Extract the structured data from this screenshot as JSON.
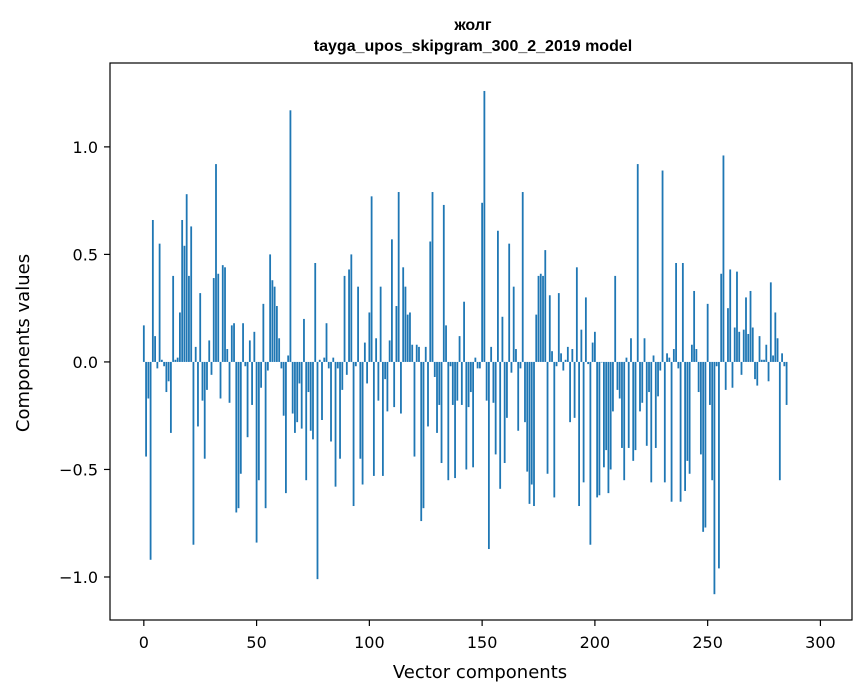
{
  "chart_data": {
    "type": "bar",
    "title_line1": "жолг",
    "title_line2": "tayga_upos_skipgram_300_2_2019 model",
    "xlabel": "Vector components",
    "ylabel": "Components values",
    "xlim": [
      -15,
      314
    ],
    "ylim": [
      -1.2,
      1.39
    ],
    "xticks": [
      0,
      50,
      100,
      150,
      200,
      250,
      300
    ],
    "xtick_labels": [
      "0",
      "50",
      "100",
      "150",
      "200",
      "250",
      "300"
    ],
    "yticks": [
      -1.0,
      -0.5,
      0.0,
      0.5,
      1.0
    ],
    "ytick_labels": [
      "−1.0",
      "−0.5",
      "0.0",
      "0.5",
      "1.0"
    ],
    "bar_color": "#1f77b4",
    "x_start": 0,
    "values": [
      0.17,
      -0.44,
      -0.17,
      -0.92,
      0.66,
      0.12,
      -0.03,
      0.55,
      0.01,
      -0.02,
      -0.14,
      -0.09,
      -0.33,
      0.4,
      0.01,
      0.02,
      0.23,
      0.66,
      0.54,
      0.78,
      0.4,
      0.63,
      -0.85,
      0.07,
      -0.3,
      0.32,
      -0.18,
      -0.45,
      -0.13,
      0.1,
      -0.06,
      0.39,
      0.92,
      0.41,
      -0.17,
      0.45,
      0.44,
      0.06,
      -0.19,
      0.17,
      0.18,
      -0.7,
      -0.68,
      -0.52,
      0.18,
      -0.02,
      -0.35,
      0.1,
      -0.2,
      0.14,
      -0.84,
      -0.55,
      -0.12,
      0.27,
      -0.68,
      -0.04,
      0.5,
      0.38,
      0.35,
      0.26,
      0.11,
      -0.03,
      -0.25,
      -0.61,
      0.03,
      1.17,
      -0.24,
      -0.33,
      -0.28,
      -0.1,
      -0.31,
      0.2,
      -0.55,
      -0.14,
      -0.32,
      -0.36,
      0.46,
      -1.01,
      0.01,
      -0.27,
      0.02,
      0.18,
      -0.03,
      -0.37,
      0.02,
      -0.58,
      -0.03,
      -0.45,
      -0.13,
      0.4,
      -0.06,
      0.43,
      0.5,
      -0.67,
      -0.02,
      0.35,
      -0.45,
      -0.57,
      0.09,
      -0.1,
      0.23,
      0.77,
      -0.53,
      0.11,
      -0.18,
      0.35,
      -0.53,
      -0.08,
      -0.23,
      0.1,
      0.57,
      -0.21,
      0.26,
      0.79,
      -0.24,
      0.44,
      0.35,
      0.22,
      0.23,
      0.08,
      -0.44,
      0.08,
      0.07,
      -0.74,
      -0.68,
      0.07,
      -0.3,
      0.56,
      0.79,
      -0.07,
      -0.33,
      -0.2,
      -0.47,
      0.73,
      0.17,
      -0.55,
      -0.02,
      -0.2,
      -0.54,
      -0.18,
      0.12,
      -0.2,
      0.28,
      -0.5,
      -0.21,
      -0.14,
      -0.49,
      0.02,
      -0.03,
      -0.03,
      0.74,
      1.26,
      -0.18,
      -0.87,
      0.07,
      -0.19,
      -0.43,
      0.61,
      -0.59,
      0.21,
      -0.47,
      -0.26,
      0.55,
      -0.05,
      0.35,
      0.06,
      -0.32,
      -0.03,
      0.79,
      -0.28,
      -0.51,
      -0.66,
      -0.57,
      -0.67,
      0.22,
      0.4,
      0.41,
      0.4,
      0.52,
      -0.52,
      0.31,
      0.05,
      -0.63,
      -0.02,
      0.32,
      0.04,
      -0.04,
      0.01,
      0.07,
      -0.28,
      0.06,
      -0.26,
      0.44,
      -0.67,
      0.15,
      -0.56,
      0.3,
      -0.01,
      -0.85,
      0.09,
      0.14,
      -0.63,
      -0.62,
      0.0,
      -0.49,
      -0.41,
      -0.61,
      -0.5,
      -0.23,
      0.4,
      -0.13,
      -0.17,
      -0.4,
      -0.55,
      0.02,
      -0.4,
      0.11,
      -0.46,
      -0.41,
      0.92,
      -0.23,
      -0.19,
      0.11,
      -0.39,
      -0.14,
      -0.56,
      0.03,
      -0.4,
      -0.16,
      -0.04,
      0.89,
      -0.56,
      0.04,
      0.02,
      -0.65,
      0.06,
      0.46,
      -0.03,
      -0.65,
      0.46,
      -0.6,
      -0.46,
      -0.52,
      0.08,
      0.33,
      0.06,
      -0.14,
      -0.43,
      -0.79,
      -0.77,
      0.27,
      -0.2,
      -0.55,
      -1.08,
      -0.02,
      -0.96,
      0.41,
      0.96,
      -0.13,
      0.25,
      0.43,
      -0.12,
      0.16,
      0.42,
      0.14,
      -0.06,
      0.15,
      0.3,
      0.13,
      0.33,
      0.16,
      -0.08,
      -0.11,
      0.12,
      0.01,
      0.01,
      0.08,
      -0.09,
      0.37,
      0.03,
      0.23,
      0.11,
      -0.55,
      0.04,
      -0.02,
      -0.2
    ]
  }
}
